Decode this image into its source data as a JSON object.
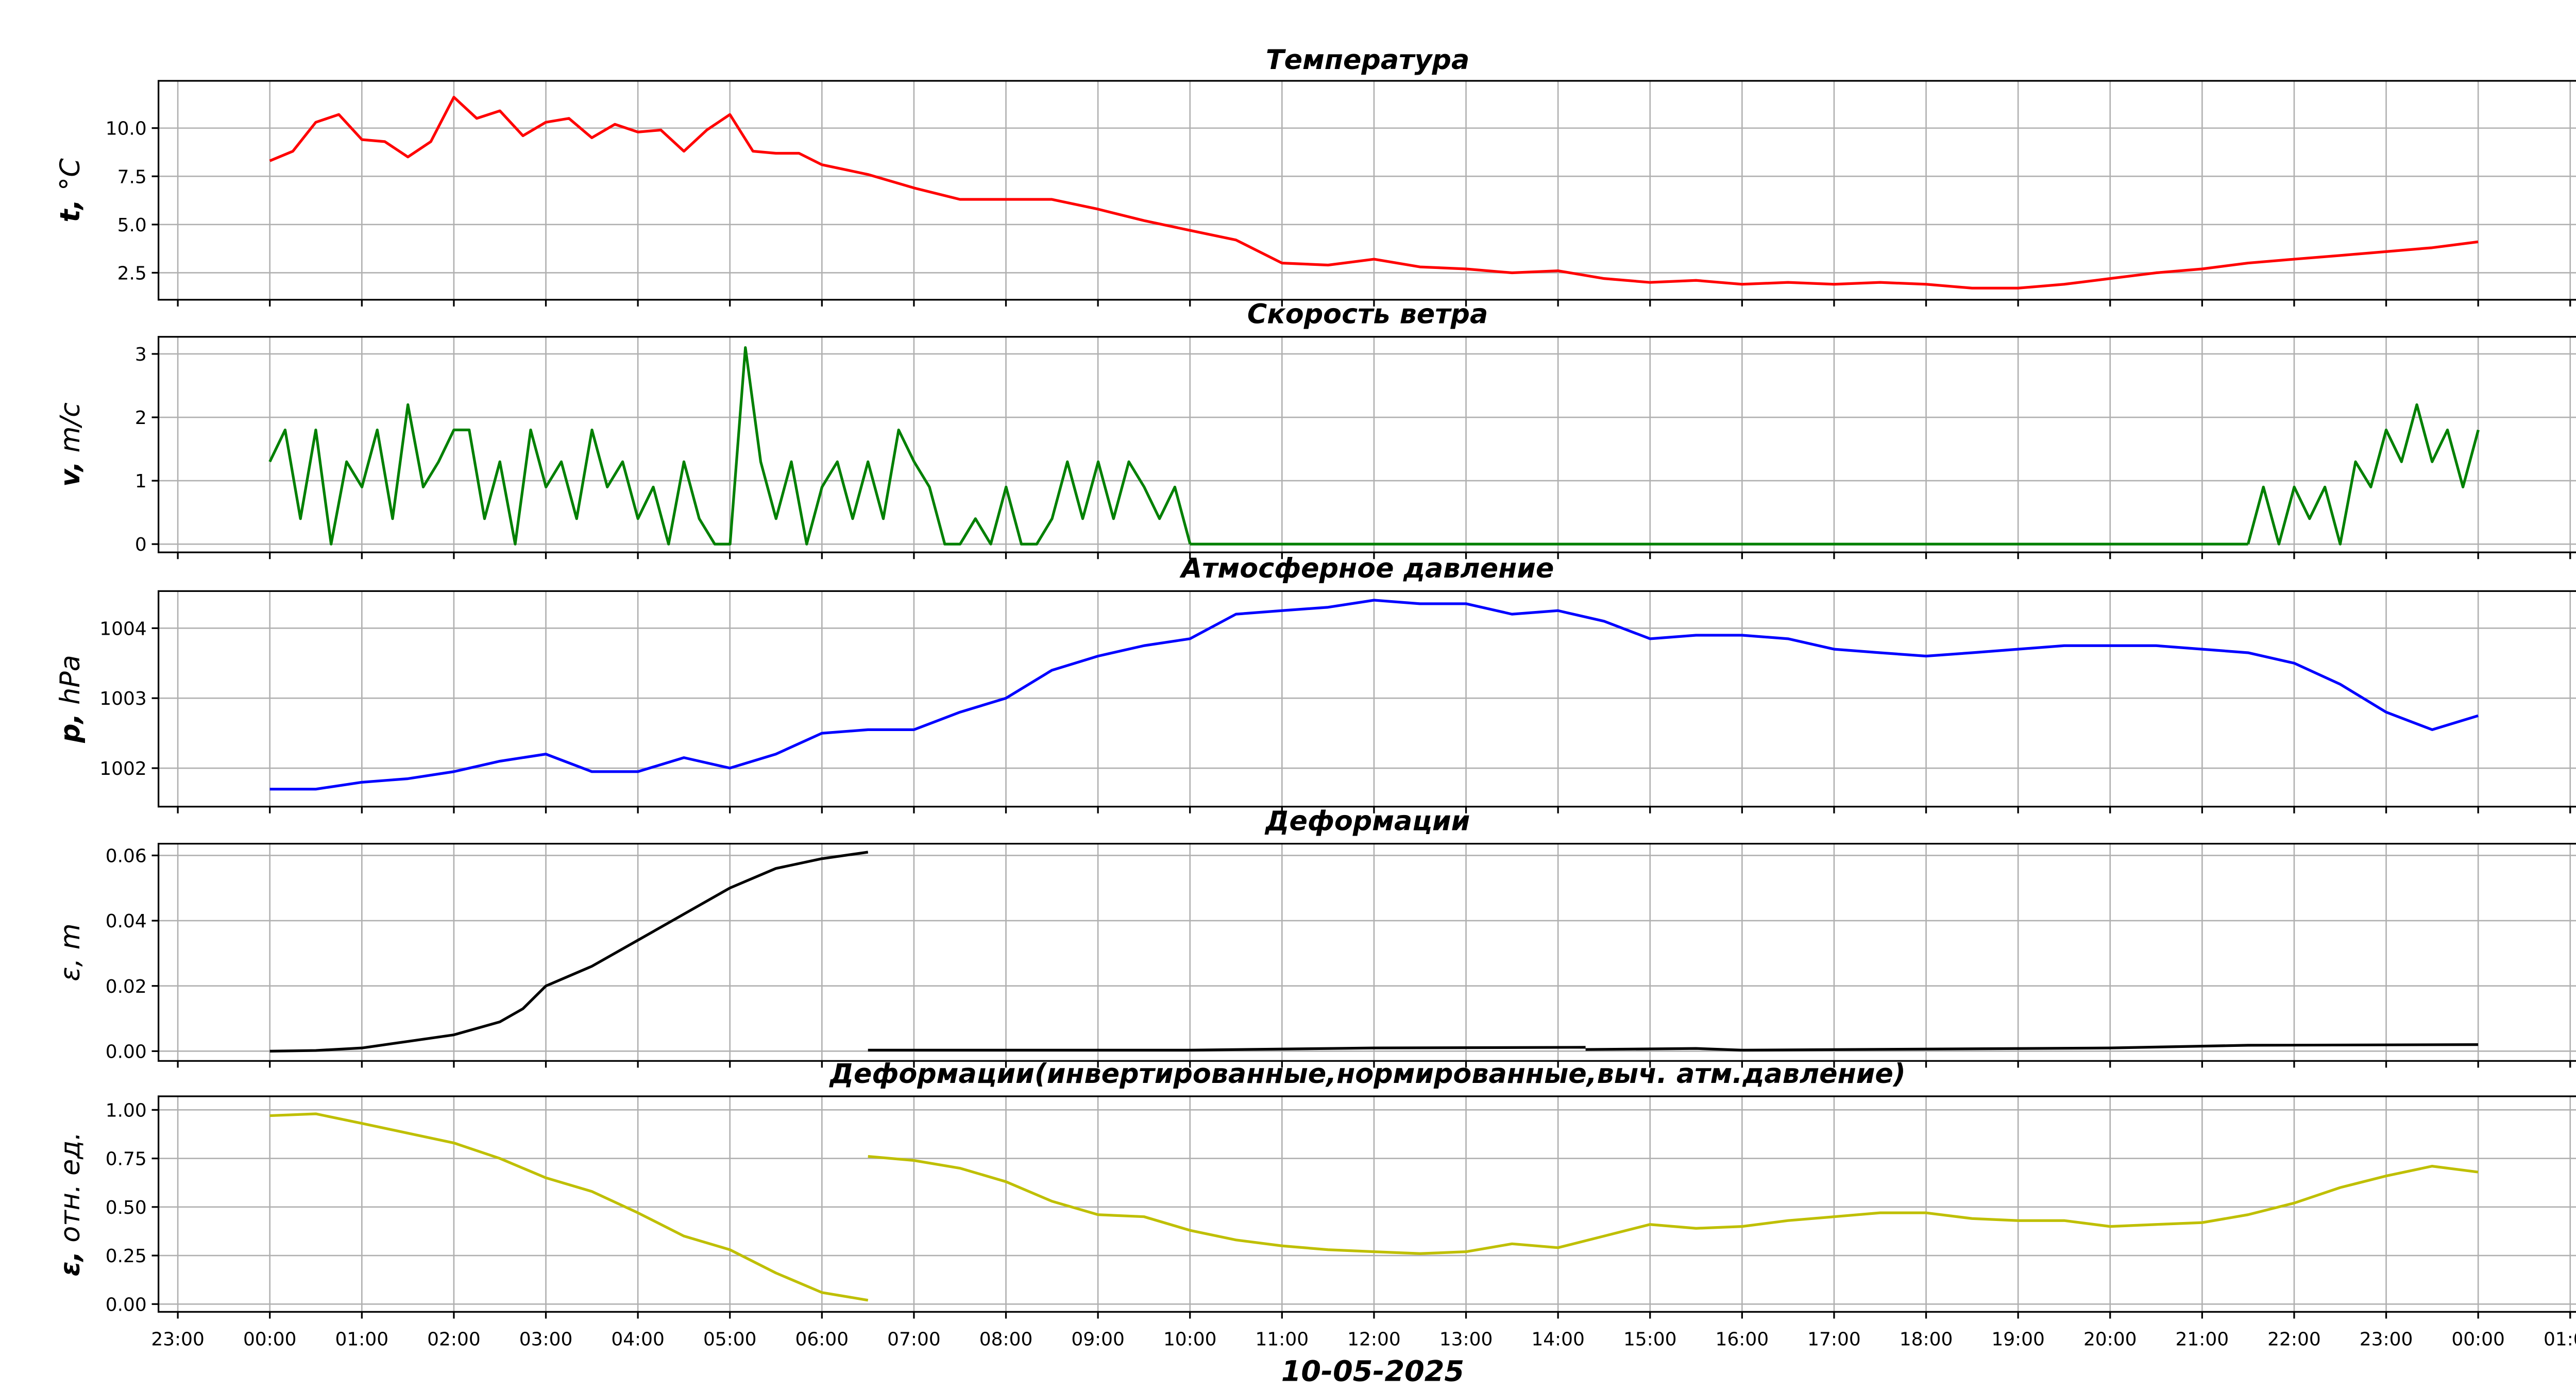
{
  "chart_data": [
    {
      "type": "line",
      "title": "Температура",
      "ylabel": "t, °C",
      "ylabel_bold": "t,",
      "ylabel_rest": " °C",
      "color": "#ff0000",
      "ylim": [
        1.1,
        12.45
      ],
      "yticks": [
        2.5,
        5.0,
        7.5,
        10.0
      ],
      "ytick_labels": [
        "2.5",
        "5.0",
        "7.5",
        "10.0"
      ],
      "segments": [
        {
          "x": [
            0,
            0.25,
            0.5,
            0.75,
            1.0,
            1.25,
            1.5,
            1.75,
            2.0,
            2.25,
            2.5,
            2.75,
            3.0,
            3.25,
            3.5,
            3.75,
            4.0,
            4.25,
            4.5,
            4.75,
            5.0,
            5.25,
            5.5,
            5.75,
            6.0,
            6.5,
            7.0,
            7.5,
            8.0,
            8.5,
            9.0,
            9.5,
            10.0,
            10.5,
            11.0,
            11.5,
            12.0,
            12.5,
            13.0,
            13.5,
            14.0,
            14.5,
            15.0,
            15.5,
            16.0,
            16.5,
            17.0,
            17.5,
            18.0,
            18.5,
            19.0,
            19.5,
            20.0,
            20.5,
            21.0,
            21.5,
            22.0,
            22.5,
            23.0,
            23.5,
            24.0
          ],
          "y": [
            8.3,
            8.8,
            10.3,
            10.7,
            9.4,
            9.3,
            8.5,
            9.3,
            11.6,
            10.5,
            10.9,
            9.6,
            10.3,
            10.5,
            9.5,
            10.2,
            9.8,
            9.9,
            8.8,
            9.9,
            10.7,
            8.8,
            8.7,
            8.7,
            8.1,
            7.6,
            6.9,
            6.3,
            6.3,
            6.3,
            5.8,
            5.2,
            4.7,
            4.2,
            3.0,
            2.9,
            3.2,
            2.8,
            2.7,
            2.5,
            2.6,
            2.2,
            2.0,
            2.1,
            1.9,
            2.0,
            1.9,
            2.0,
            1.9,
            1.7,
            1.7,
            1.9,
            2.2,
            2.5,
            2.7,
            3.0,
            3.2,
            3.4,
            3.6,
            3.8,
            4.1
          ]
        }
      ]
    },
    {
      "type": "line",
      "title": "Скорость ветра",
      "ylabel": "v, m/c",
      "ylabel_bold": "v,",
      "ylabel_rest": " m/c",
      "color": "#008000",
      "ylim": [
        -0.13,
        3.27
      ],
      "yticks": [
        0,
        1,
        2,
        3
      ],
      "ytick_labels": [
        "0",
        "1",
        "2",
        "3"
      ],
      "sampled_segments": [
        {
          "x_start": 0,
          "step_hours": 0.1667,
          "values": [
            1.3,
            1.8,
            0.4,
            1.8,
            0,
            1.3,
            0.9,
            1.8,
            0.4,
            2.2,
            0.9,
            1.3,
            1.8,
            1.8,
            0.4,
            1.3,
            0,
            1.8,
            0.9,
            1.3,
            0.4,
            1.8,
            0.9,
            1.3,
            0.4,
            0.9,
            0,
            1.3,
            0.4,
            0,
            0,
            3.1,
            1.3,
            0.4,
            1.3,
            0,
            0.9,
            1.3,
            0.4,
            1.3,
            0.4,
            1.8,
            1.3,
            0.9,
            0,
            0,
            0.4,
            0,
            0.9,
            0,
            0,
            0.4,
            1.3,
            0.4,
            1.3,
            0.4,
            1.3,
            0.9,
            0.4,
            0.9,
            0
          ]
        },
        {
          "x_start": 10,
          "step_hours": 11.5,
          "values": [
            0,
            0
          ]
        },
        {
          "x_start": 21.5,
          "step_hours": 0.1667,
          "values": [
            0,
            0.9,
            0,
            0.9,
            0.4,
            0.9,
            0,
            1.3,
            0.9,
            1.8,
            1.3,
            2.2,
            1.3,
            1.8,
            0.9,
            1.8
          ]
        }
      ]
    },
    {
      "type": "line",
      "title": "Атмосферное давление",
      "ylabel": "p, hPa",
      "ylabel_bold": "p,",
      "ylabel_rest": " hPa",
      "color": "#0000ff",
      "ylim": [
        1001.45,
        1004.53
      ],
      "yticks": [
        1002,
        1003,
        1004
      ],
      "ytick_labels": [
        "1002",
        "1003",
        "1004"
      ],
      "segments": [
        {
          "x": [
            0,
            0.5,
            1,
            1.5,
            2,
            2.5,
            3,
            3.5,
            4,
            4.5,
            5,
            5.5,
            6,
            6.5,
            7,
            7.5,
            8,
            8.5,
            9,
            9.5,
            10,
            10.5,
            11,
            11.5,
            12,
            12.5,
            13,
            13.5,
            14,
            14.5,
            15,
            15.5,
            16,
            16.5,
            17,
            17.5,
            18,
            18.5,
            19,
            19.5,
            20,
            20.5,
            21,
            21.5,
            22,
            22.5,
            23,
            23.5,
            24
          ],
          "y": [
            1001.7,
            1001.7,
            1001.8,
            1001.85,
            1001.95,
            1002.1,
            1002.2,
            1001.95,
            1001.95,
            1002.15,
            1002.0,
            1002.2,
            1002.5,
            1002.55,
            1002.55,
            1002.8,
            1003.0,
            1003.4,
            1003.6,
            1003.75,
            1003.85,
            1004.2,
            1004.25,
            1004.3,
            1004.4,
            1004.35,
            1004.35,
            1004.2,
            1004.25,
            1004.1,
            1003.85,
            1003.9,
            1003.9,
            1003.85,
            1003.7,
            1003.65,
            1003.6,
            1003.65,
            1003.7,
            1003.75,
            1003.75,
            1003.75,
            1003.7,
            1003.65,
            1003.5,
            1003.2,
            1002.8,
            1002.55,
            1002.75
          ]
        }
      ]
    },
    {
      "type": "line",
      "title": "Деформации",
      "ylabel": "ε, m",
      "ylabel_bold": "",
      "ylabel_rest": "ε, m",
      "color": "#000000",
      "ylim": [
        -0.003,
        0.0636
      ],
      "yticks": [
        0,
        0.02,
        0.04,
        0.06
      ],
      "ytick_labels": [
        "0.00",
        "0.02",
        "0.04",
        "0.06"
      ],
      "segments": [
        {
          "x": [
            0,
            0.5,
            1,
            1.5,
            2,
            2.5,
            2.75,
            3,
            3.5,
            4,
            4.5,
            5,
            5.5,
            6,
            6.5
          ],
          "y": [
            0,
            0.0002,
            0.001,
            0.003,
            0.005,
            0.009,
            0.013,
            0.02,
            0.026,
            0.034,
            0.042,
            0.05,
            0.056,
            0.059,
            0.061
          ]
        },
        {
          "x": [
            6.5,
            10,
            12,
            14.3
          ],
          "y": [
            0.0003,
            0.0003,
            0.001,
            0.0012
          ]
        },
        {
          "x": [
            14.3,
            15.5,
            16,
            20,
            21.5,
            24
          ],
          "y": [
            0.0005,
            0.0008,
            0.0003,
            0.001,
            0.0018,
            0.002
          ]
        }
      ]
    },
    {
      "type": "line",
      "title": "Деформации(инвертированные,нормированные,выч. атм.давление)",
      "ylabel": "ε, отн. ед.",
      "ylabel_bold": "ε,",
      "ylabel_rest": " отн. ед.",
      "color": "#bfbf00",
      "ylim": [
        -0.04,
        1.07
      ],
      "yticks": [
        0,
        0.25,
        0.5,
        0.75,
        1.0
      ],
      "ytick_labels": [
        "0.00",
        "0.25",
        "0.50",
        "0.75",
        "1.00"
      ],
      "segments": [
        {
          "x": [
            0,
            0.5,
            1,
            1.5,
            2,
            2.5,
            3,
            3.5,
            4,
            4.5,
            5,
            5.5,
            6,
            6.5
          ],
          "y": [
            0.97,
            0.98,
            0.93,
            0.88,
            0.83,
            0.75,
            0.65,
            0.58,
            0.47,
            0.35,
            0.28,
            0.16,
            0.06,
            0.02
          ]
        },
        {
          "x": [
            6.5,
            7,
            7.5,
            8,
            8.5,
            9,
            9.5,
            10,
            10.5,
            11,
            11.5,
            12,
            12.5,
            13,
            13.5,
            14,
            14.5,
            15,
            15.5,
            16,
            16.5,
            17,
            17.5,
            18,
            18.5,
            19,
            19.5,
            20,
            20.5,
            21,
            21.5,
            22,
            22.5,
            23,
            23.5,
            24
          ],
          "y": [
            0.76,
            0.74,
            0.7,
            0.63,
            0.53,
            0.46,
            0.45,
            0.38,
            0.33,
            0.3,
            0.28,
            0.27,
            0.26,
            0.27,
            0.31,
            0.29,
            0.35,
            0.41,
            0.39,
            0.4,
            0.43,
            0.45,
            0.47,
            0.47,
            0.44,
            0.43,
            0.43,
            0.4,
            0.41,
            0.42,
            0.46,
            0.52,
            0.6,
            0.66,
            0.71,
            0.68
          ]
        }
      ]
    }
  ],
  "x_axis": {
    "xlabel": "10-05-2025",
    "xlim_hours": [
      -1.21,
      25.2
    ],
    "ticks_hours": [
      -1,
      0,
      1,
      2,
      3,
      4,
      5,
      6,
      7,
      8,
      9,
      10,
      11,
      12,
      13,
      14,
      15,
      16,
      17,
      18,
      19,
      20,
      21,
      22,
      23,
      24,
      25
    ],
    "tick_labels": [
      "23:00",
      "00:00",
      "01:00",
      "02:00",
      "03:00",
      "04:00",
      "05:00",
      "06:00",
      "07:00",
      "08:00",
      "09:00",
      "10:00",
      "11:00",
      "12:00",
      "13:00",
      "14:00",
      "15:00",
      "16:00",
      "17:00",
      "18:00",
      "19:00",
      "20:00",
      "21:00",
      "22:00",
      "23:00",
      "00:00",
      "01:00"
    ]
  },
  "grid": true
}
